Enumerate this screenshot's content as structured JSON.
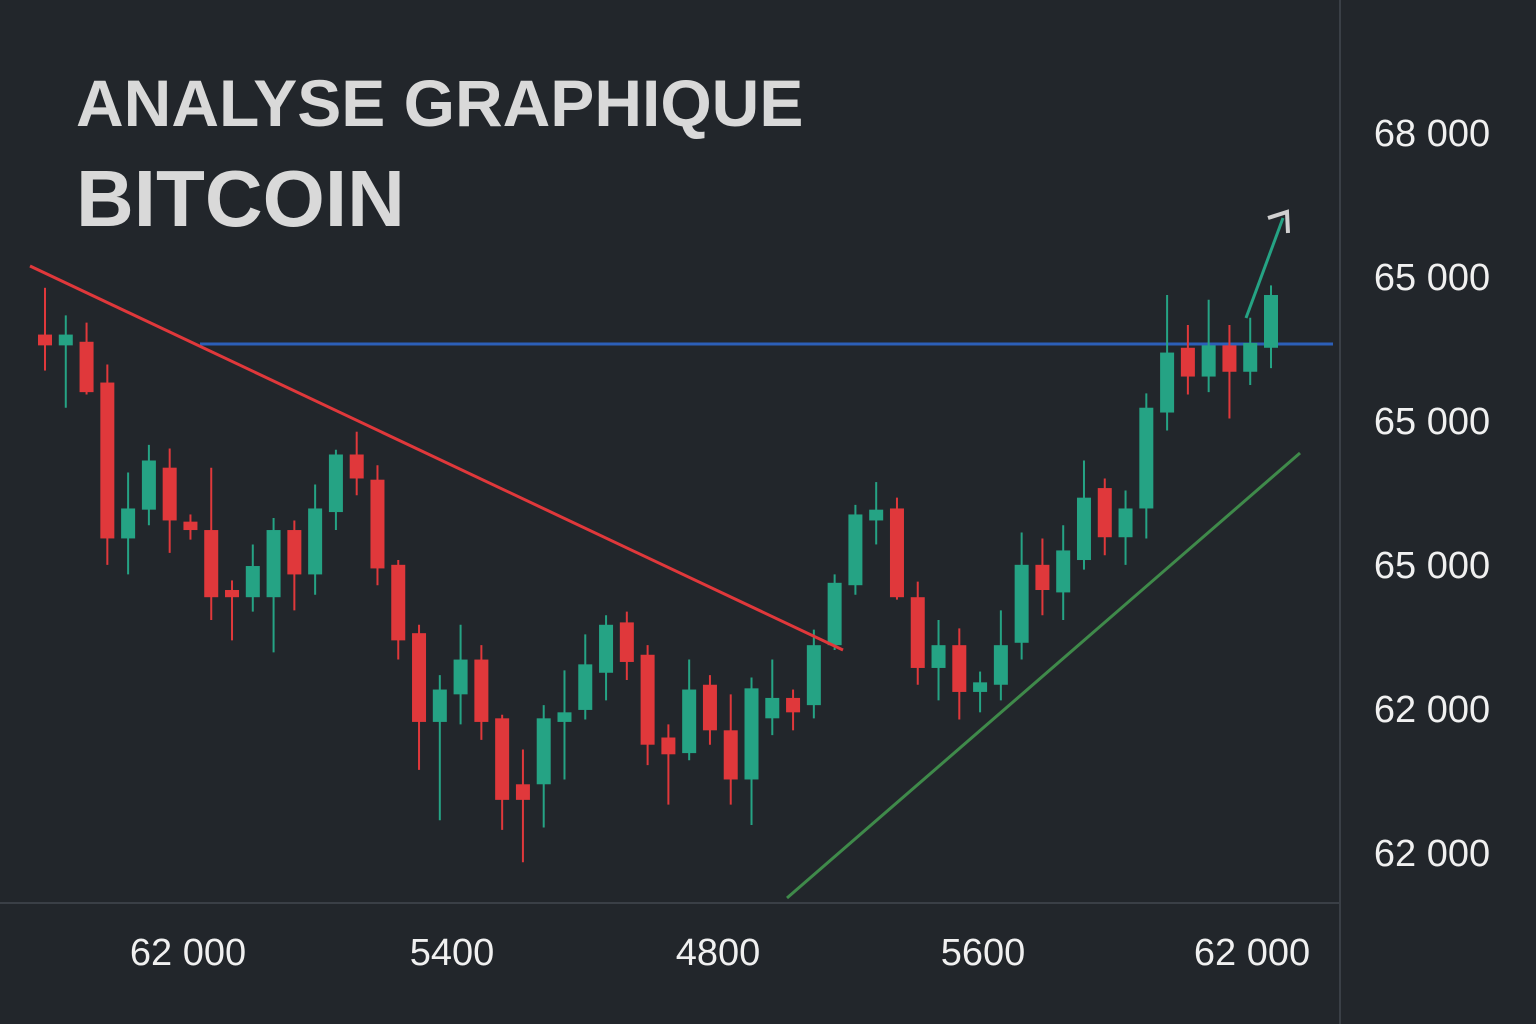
{
  "chart_data": {
    "type": "candlestick",
    "title": "ANALYSE GRAPHIQUE",
    "subtitle": "BITCOIN",
    "y_tick_labels": [
      "68 000",
      "65 000",
      "65 000",
      "65 000",
      "62 000",
      "62 000"
    ],
    "x_tick_labels": [
      "62 000",
      "5400",
      "4800",
      "5600",
      "62 000"
    ],
    "ylim": [
      61580,
      69110
    ],
    "up_color": "#25a384",
    "down_color": "#e0383b",
    "open": [
      66320,
      66230,
      66260,
      65920,
      64620,
      64860,
      65210,
      64760,
      64690,
      64190,
      64130,
      64130,
      64690,
      64320,
      64840,
      65320,
      65110,
      64400,
      63830,
      63090,
      63320,
      63610,
      63120,
      62570,
      62570,
      63090,
      63190,
      63500,
      63920,
      63650,
      62960,
      62830,
      63400,
      63020,
      62610,
      63120,
      63290,
      63230,
      63730,
      64230,
      64770,
      64870,
      64130,
      63540,
      63730,
      63340,
      63400,
      63750,
      64400,
      64170,
      64440,
      65040,
      64630,
      64870,
      65670,
      66210,
      65970,
      66230,
      66010,
      66210
    ],
    "high": [
      66710,
      66480,
      66420,
      66070,
      65170,
      65400,
      65370,
      64820,
      65210,
      64270,
      64570,
      64790,
      64770,
      65070,
      65360,
      65510,
      65230,
      64440,
      63900,
      63480,
      63900,
      63730,
      63150,
      62860,
      63230,
      63520,
      63820,
      63980,
      64010,
      63730,
      63070,
      63610,
      63480,
      63320,
      63460,
      63610,
      63360,
      63860,
      64320,
      64900,
      65090,
      64960,
      64260,
      63940,
      63870,
      63510,
      64020,
      64670,
      64620,
      64730,
      65270,
      65120,
      65020,
      65830,
      66650,
      66400,
      66610,
      66400,
      66460,
      66730
    ],
    "low": [
      66020,
      65710,
      65820,
      64400,
      64320,
      64730,
      64500,
      64610,
      63940,
      63770,
      64010,
      63670,
      64020,
      64150,
      64690,
      64980,
      64230,
      63610,
      62690,
      62270,
      63070,
      62940,
      62190,
      61920,
      62210,
      62610,
      63110,
      63270,
      63440,
      62730,
      62400,
      62770,
      62900,
      62400,
      62230,
      62980,
      63020,
      63120,
      63690,
      64150,
      64570,
      64110,
      63400,
      63270,
      63110,
      63170,
      63270,
      63610,
      63980,
      63940,
      64360,
      64480,
      64400,
      64620,
      65520,
      65820,
      65840,
      65620,
      65900,
      66040
    ],
    "close": [
      66230,
      66320,
      65840,
      64620,
      64870,
      65270,
      64770,
      64690,
      64130,
      64130,
      64390,
      64690,
      64320,
      64870,
      65320,
      65120,
      64370,
      63770,
      63090,
      63360,
      63610,
      63090,
      62440,
      62440,
      63120,
      63170,
      63570,
      63900,
      63590,
      62900,
      62820,
      63360,
      63020,
      62610,
      63370,
      63290,
      63170,
      63730,
      64250,
      64820,
      64860,
      64130,
      63540,
      63730,
      63340,
      63420,
      63730,
      64400,
      64190,
      64520,
      64960,
      64630,
      64870,
      65710,
      66170,
      65970,
      66230,
      66010,
      66250,
      66650
    ]
  }
}
